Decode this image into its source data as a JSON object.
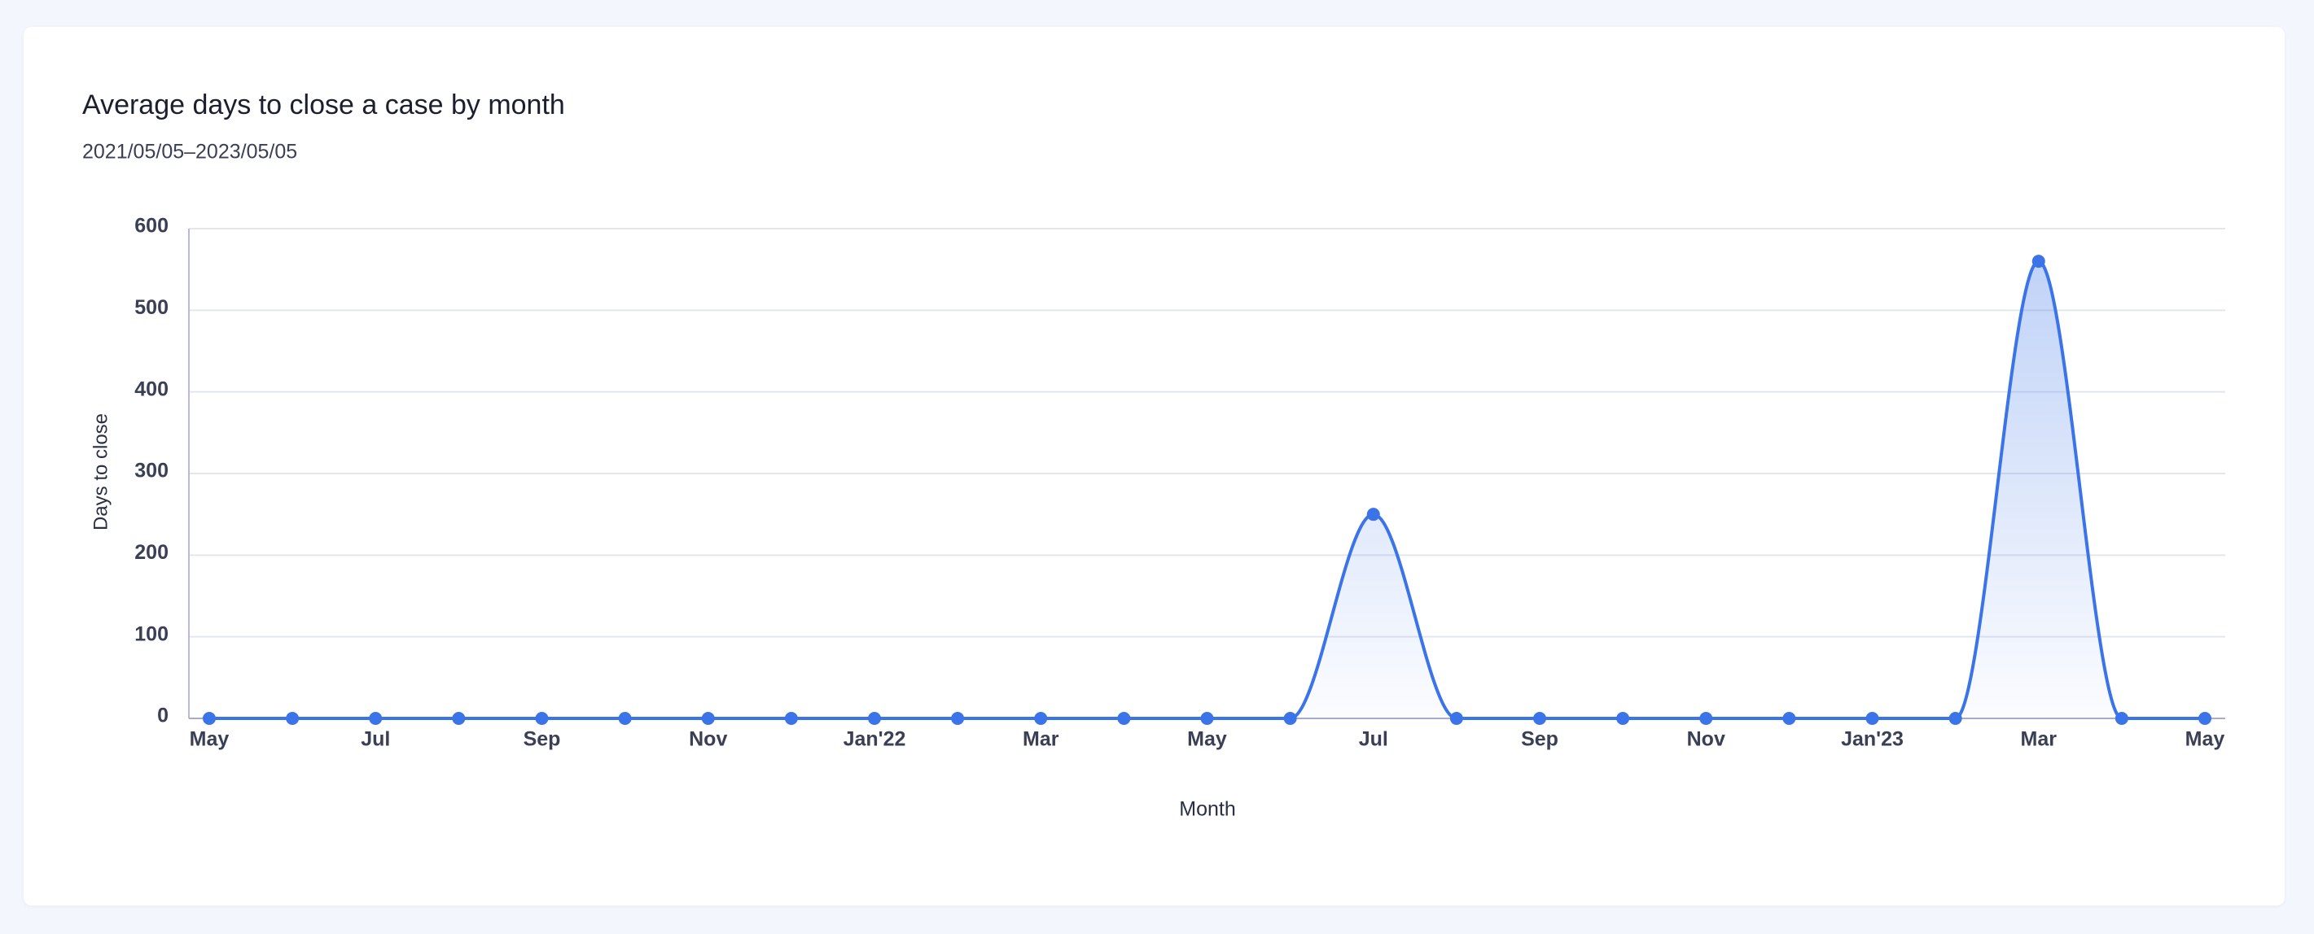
{
  "chart_data": {
    "type": "line",
    "title": "Average days to close a case by month",
    "subtitle": "2021/05/05–2023/05/05",
    "x_label": "Month",
    "y_label": "Days to close",
    "categories": [
      "May",
      null,
      "Jul",
      null,
      "Sep",
      null,
      "Nov",
      null,
      "Jan'22",
      null,
      "Mar",
      null,
      "May",
      null,
      "Jul",
      null,
      "Sep",
      null,
      "Nov",
      null,
      "Jan'23",
      null,
      "Mar",
      null,
      "May"
    ],
    "series": [
      {
        "name": "Average days to close",
        "color": "#3b74e8",
        "values": [
          0,
          0,
          0,
          0,
          0,
          0,
          0,
          0,
          0,
          0,
          0,
          0,
          0,
          0,
          250,
          0,
          0,
          0,
          0,
          0,
          0,
          0,
          560,
          0,
          0
        ]
      }
    ],
    "ylim": [
      0,
      600
    ],
    "yticks": [
      0,
      100,
      200,
      300,
      400,
      500,
      600
    ],
    "grid": true
  }
}
